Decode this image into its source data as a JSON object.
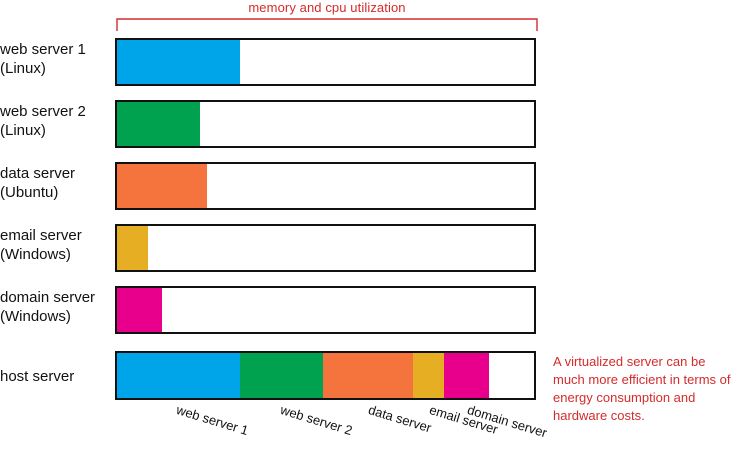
{
  "header": {
    "title": "memory and cpu utilization"
  },
  "servers": [
    {
      "name": "web server 1",
      "os": "(Linux)",
      "utilization": 0.295,
      "color": "#00a4e8"
    },
    {
      "name": "web server 2",
      "os": "(Linux)",
      "utilization": 0.198,
      "color": "#00a14f"
    },
    {
      "name": "data server",
      "os": "(Ubuntu)",
      "utilization": 0.215,
      "color": "#f5743e"
    },
    {
      "name": "email server",
      "os": "(Windows)",
      "utilization": 0.075,
      "color": "#e6ae22"
    },
    {
      "name": "domain server",
      "os": "(Windows)",
      "utilization": 0.108,
      "color": "#e8008d"
    }
  ],
  "host": {
    "label": "host server",
    "segment_labels": [
      "web server 1",
      "web server 2",
      "data server",
      "email server",
      "domain server"
    ]
  },
  "note": "A virtualized server can be much more efficient in terms of energy consumption and hardware costs.",
  "colors": {
    "accent": "#d62b2b",
    "border": "#111111"
  }
}
